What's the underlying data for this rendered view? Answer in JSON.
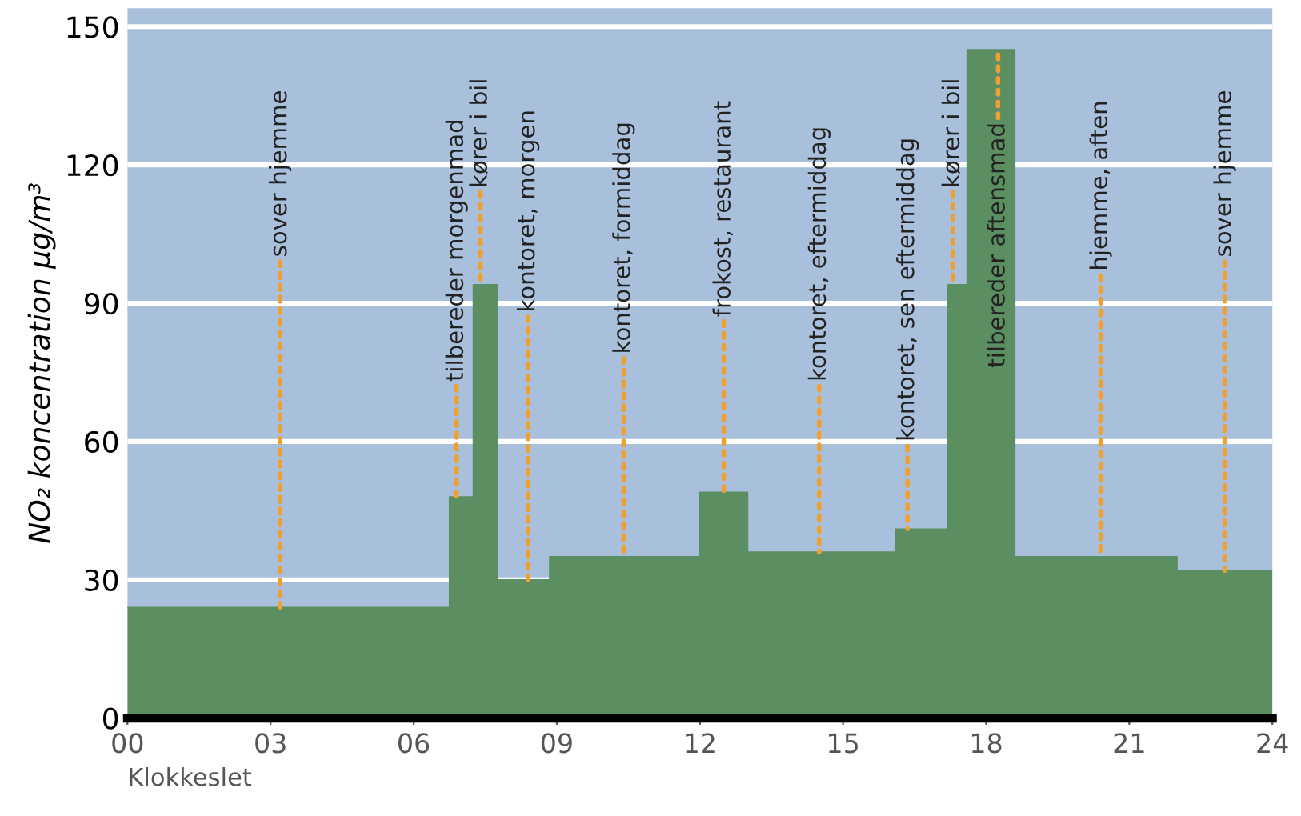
{
  "chart_data": {
    "type": "area",
    "xlabel": "Klokkeslet",
    "ylabel": "NO₂ koncentration µg/m³",
    "x": [
      0,
      6.75,
      6.75,
      7.25,
      7.25,
      7.75,
      7.75,
      8.85,
      8.85,
      12,
      12,
      13,
      13,
      16.1,
      16.1,
      17.2,
      17.2,
      17.6,
      17.6,
      18.6,
      18.6,
      22,
      22,
      24
    ],
    "values": [
      24,
      24,
      48,
      48,
      94,
      94,
      30,
      30,
      35,
      35,
      49,
      49,
      36,
      36,
      41,
      41,
      94,
      94,
      145,
      145,
      35,
      35,
      32,
      32
    ],
    "color": "#5b8f62",
    "xlim": [
      0,
      24
    ],
    "ylim": [
      0,
      154
    ],
    "xticks": [
      {
        "value": 0,
        "label": "00"
      },
      {
        "value": 3,
        "label": "03"
      },
      {
        "value": 6,
        "label": "06"
      },
      {
        "value": 9,
        "label": "09"
      },
      12,
      15,
      18,
      21,
      24
    ],
    "yticks": [
      0,
      30,
      60,
      90,
      120,
      150
    ],
    "grid": "y",
    "legend": false,
    "annotations": [
      {
        "text": "sover hjemme",
        "x": 3.2,
        "y": 24
      },
      {
        "text": "tilbereder morgenmad",
        "x": 6.9,
        "y": 48
      },
      {
        "text": "kører i bil",
        "x": 7.4,
        "y": 94
      },
      {
        "text": "kontoret, morgen",
        "x": 8.4,
        "y": 30
      },
      {
        "text": "kontoret, formiddag",
        "x": 10.4,
        "y": 35
      },
      {
        "text": "frokost, restaurant",
        "x": 12.5,
        "y": 49
      },
      {
        "text": "kontoret, eftermiddag",
        "x": 14.5,
        "y": 36
      },
      {
        "text": "kontoret, sen eftermiddag",
        "x": 16.35,
        "y": 41
      },
      {
        "text": "kører i bil",
        "x": 17.3,
        "y": 94
      },
      {
        "text": "tilbereder aftensmad",
        "x": 18.25,
        "y": 145
      },
      {
        "text": "hjemme, aften",
        "x": 20.4,
        "y": 35
      },
      {
        "text": "sover hjemme",
        "x": 23.0,
        "y": 32
      }
    ]
  }
}
